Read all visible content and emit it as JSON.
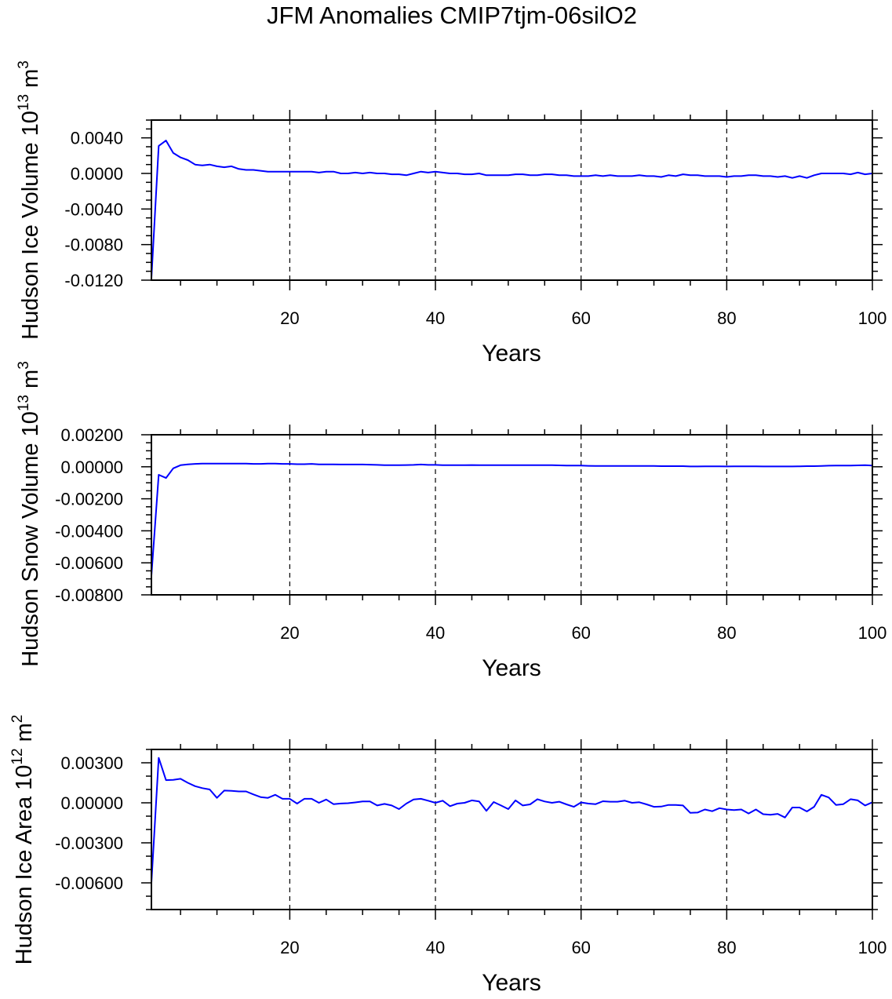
{
  "title": "JFM Anomalies CMIP7tjm-06silO2",
  "line_color": "#0000ff",
  "chart_data": [
    {
      "type": "line",
      "xlabel": "Years",
      "ylabel": {
        "text": "Hudson Ice Volume 10",
        "exp": "13",
        "unit": " m",
        "unit_exp": "3"
      },
      "xlim": [
        1,
        100
      ],
      "ylim": [
        -0.012,
        0.006
      ],
      "xticks": [
        20,
        40,
        60,
        80,
        100
      ],
      "xtick_labels": [
        "20",
        "40",
        "60",
        "80",
        "100"
      ],
      "yticks": [
        0.004,
        0.0,
        -0.004,
        -0.008,
        -0.012
      ],
      "ytick_labels": [
        "0.0040",
        "0.0000",
        "-0.0040",
        "-0.0080",
        "-0.0120"
      ],
      "y_minor_step": 0.001,
      "x_minor_step": 5,
      "grid": "vertical dashed at major x ticks",
      "x_start": 1,
      "values": [
        -0.0118,
        0.0031,
        0.0037,
        0.0023,
        0.0018,
        0.0015,
        0.001,
        0.0009,
        0.001,
        0.0008,
        0.0007,
        0.0008,
        0.0005,
        0.0004,
        0.0004,
        0.0003,
        0.0002,
        0.0002,
        0.0002,
        0.0002,
        0.0002,
        0.0002,
        0.0002,
        0.0001,
        0.0002,
        0.0002,
        0.0,
        0.0,
        0.0001,
        0.0,
        0.0001,
        0.0,
        0.0,
        -0.0001,
        -0.0001,
        -0.0002,
        0.0,
        0.0002,
        0.0001,
        0.0002,
        0.0001,
        0.0,
        0.0,
        -0.0001,
        -0.0001,
        0.0,
        -0.0002,
        -0.0002,
        -0.0002,
        -0.0002,
        -0.0001,
        -0.0001,
        -0.0002,
        -0.0002,
        -0.0001,
        -0.0001,
        -0.0002,
        -0.0002,
        -0.0003,
        -0.0003,
        -0.0003,
        -0.0002,
        -0.0003,
        -0.0002,
        -0.0003,
        -0.0003,
        -0.0003,
        -0.0002,
        -0.0003,
        -0.0003,
        -0.0004,
        -0.0002,
        -0.0003,
        -0.0001,
        -0.0002,
        -0.0002,
        -0.0003,
        -0.0003,
        -0.0003,
        -0.0004,
        -0.0003,
        -0.0003,
        -0.0002,
        -0.0002,
        -0.0003,
        -0.0003,
        -0.0004,
        -0.0003,
        -0.0005,
        -0.0003,
        -0.0005,
        -0.0002,
        0.0,
        0.0,
        0.0,
        0.0,
        -0.0001,
        0.0001,
        -0.0001,
        0.0
      ]
    },
    {
      "type": "line",
      "xlabel": "Years",
      "ylabel": {
        "text": "Hudson Snow Volume 10",
        "exp": "13",
        "unit": " m",
        "unit_exp": "3"
      },
      "xlim": [
        1,
        100
      ],
      "ylim": [
        -0.008,
        0.002
      ],
      "xticks": [
        20,
        40,
        60,
        80,
        100
      ],
      "xtick_labels": [
        "20",
        "40",
        "60",
        "80",
        "100"
      ],
      "yticks": [
        0.002,
        0.0,
        -0.002,
        -0.004,
        -0.006,
        -0.008
      ],
      "ytick_labels": [
        "0.00200",
        "0.00000",
        "-0.00200",
        "-0.00400",
        "-0.00600",
        "-0.00800"
      ],
      "y_minor_step": 0.0005,
      "x_minor_step": 5,
      "grid": "vertical dashed at major x ticks",
      "x_start": 1,
      "values": [
        -0.0068,
        -0.0005,
        -0.0007,
        -0.0001,
        0.0001,
        0.00015,
        0.00018,
        0.0002,
        0.0002,
        0.0002,
        0.0002,
        0.0002,
        0.0002,
        0.0002,
        0.00018,
        0.00018,
        0.0002,
        0.0002,
        0.00018,
        0.00018,
        0.00016,
        0.00016,
        0.00018,
        0.00015,
        0.00015,
        0.00015,
        0.00014,
        0.00014,
        0.00014,
        0.00014,
        0.00013,
        0.00012,
        0.0001,
        0.0001,
        0.0001,
        0.00011,
        0.00012,
        0.00014,
        0.00012,
        0.00012,
        0.0001,
        0.0001,
        0.0001,
        0.0001,
        0.00011,
        0.0001,
        0.0001,
        0.0001,
        0.0001,
        0.0001,
        0.0001,
        0.0001,
        0.0001,
        0.0001,
        0.0001,
        0.0001,
        9e-05,
        8e-05,
        8e-05,
        8e-05,
        6e-05,
        5e-05,
        5e-05,
        5e-05,
        5e-05,
        5e-05,
        5e-05,
        5e-05,
        5e-05,
        5e-05,
        4e-05,
        4e-05,
        4e-05,
        4e-05,
        2e-05,
        2e-05,
        3e-05,
        3e-05,
        3e-05,
        2e-05,
        3e-05,
        3e-05,
        3e-05,
        3e-05,
        2e-05,
        2e-05,
        2e-05,
        2e-05,
        2e-05,
        3e-05,
        4e-05,
        4e-05,
        5e-05,
        7e-05,
        8e-05,
        8e-05,
        8e-05,
        9e-05,
        0.0001,
        8e-05
      ]
    },
    {
      "type": "line",
      "xlabel": "Years",
      "ylabel": {
        "text": "Hudson Ice Area 10",
        "exp": "12",
        "unit": " m",
        "unit_exp": "2"
      },
      "xlim": [
        1,
        100
      ],
      "ylim": [
        -0.008,
        0.004
      ],
      "xticks": [
        20,
        40,
        60,
        80,
        100
      ],
      "xtick_labels": [
        "20",
        "40",
        "60",
        "80",
        "100"
      ],
      "yticks": [
        0.003,
        0.0,
        -0.003,
        -0.006
      ],
      "ytick_labels": [
        "0.00300",
        "0.00000",
        "-0.00300",
        "-0.00600"
      ],
      "y_minor_step": 0.001,
      "x_minor_step": 5,
      "grid": "vertical dashed at major x ticks",
      "x_start": 1,
      "values": [
        -0.006,
        0.00337,
        0.0017,
        0.00172,
        0.0018,
        0.0015,
        0.00125,
        0.0011,
        0.001,
        0.00037,
        0.00092,
        0.0009,
        0.00085,
        0.00085,
        0.00063,
        0.00043,
        0.00037,
        0.0006,
        0.0003,
        0.0003,
        -6e-05,
        0.0003,
        0.0003,
        0.0,
        0.00025,
        -0.0001,
        -5e-05,
        -3e-05,
        3e-05,
        0.0001,
        0.0001,
        -0.0002,
        -8e-05,
        -0.0002,
        -0.00047,
        -6e-05,
        0.00025,
        0.0003,
        0.00016,
        0.0,
        0.00016,
        -0.00025,
        -6e-05,
        0.0,
        0.00018,
        0.0001,
        -0.0006,
        6e-05,
        -0.0002,
        -0.00047,
        0.00018,
        -0.0002,
        -0.00012,
        0.00027,
        0.0001,
        0.0,
        8e-05,
        -0.00012,
        -0.0003,
        3e-05,
        -6e-05,
        -0.0001,
        0.00012,
        8e-05,
        8e-05,
        0.00016,
        0.0,
        4e-05,
        -0.00012,
        -0.0003,
        -0.00028,
        -0.00016,
        -0.00016,
        -0.0002,
        -0.00075,
        -0.00073,
        -0.0005,
        -0.00063,
        -0.0004,
        -0.0005,
        -0.00055,
        -0.0005,
        -0.0008,
        -0.0005,
        -0.00085,
        -0.0009,
        -0.00083,
        -0.0011,
        -0.00035,
        -0.00035,
        -0.00065,
        -0.0003,
        0.0006,
        0.0004,
        -0.00016,
        -0.0001,
        0.00027,
        0.00018,
        -0.0002,
        4e-05
      ]
    }
  ]
}
